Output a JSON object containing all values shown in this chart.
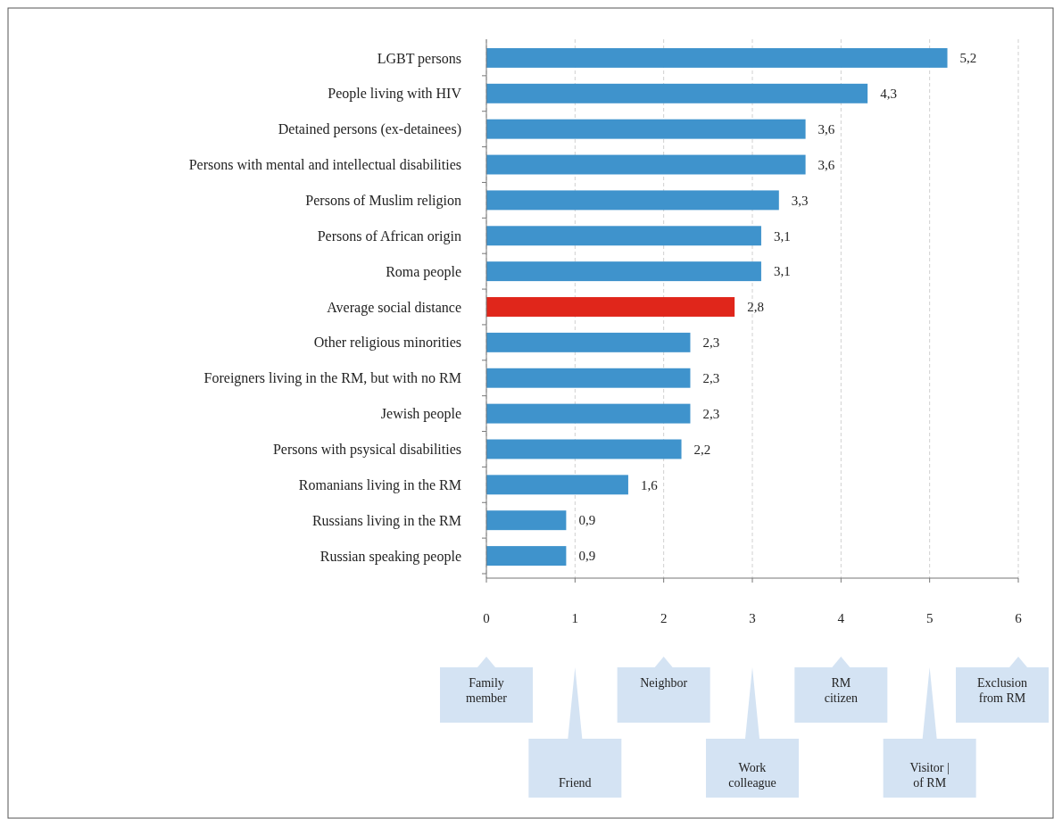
{
  "chart_data": {
    "type": "bar",
    "orientation": "horizontal",
    "categories": [
      "LGBT persons",
      "People living with HIV",
      "Detained persons (ex-detainees)",
      "Persons with mental and intellectual disabilities",
      "Persons of Muslim religion",
      "Persons of African origin",
      "Roma people",
      "Average social distance",
      "Other religious minorities",
      "Foreigners living in the RM, but with no RM",
      "Jewish people",
      "Persons with psysical disabilities",
      "Romanians living in the RM",
      "Russians living in the RM",
      "Russian speaking people"
    ],
    "values": [
      5.2,
      4.3,
      3.6,
      3.6,
      3.3,
      3.1,
      3.1,
      2.8,
      2.3,
      2.3,
      2.3,
      2.2,
      1.6,
      0.9,
      0.9
    ],
    "colors": [
      "#3f93cc",
      "#3f93cc",
      "#3f93cc",
      "#3f93cc",
      "#3f93cc",
      "#3f93cc",
      "#3f93cc",
      "#e0261b",
      "#3f93cc",
      "#3f93cc",
      "#3f93cc",
      "#3f93cc",
      "#3f93cc",
      "#3f93cc",
      "#3f93cc"
    ],
    "value_labels": [
      "5,2",
      "4,3",
      "3,6",
      "3,6",
      "3,3",
      "3,1",
      "3,1",
      "2,8",
      "2,3",
      "2,3",
      "2,3",
      "2,2",
      "1,6",
      "0,9",
      "0,9"
    ],
    "xlim": [
      0,
      6
    ],
    "xticks": [
      0,
      1,
      2,
      3,
      4,
      5,
      6
    ],
    "grid": "x",
    "annotations": [
      "Family\nmember",
      "Friend",
      "Neighbor",
      "Work\ncolleague",
      "RM\ncitizen",
      "Visitor |\nof RM",
      "Exclusion\nfrom RM"
    ]
  }
}
